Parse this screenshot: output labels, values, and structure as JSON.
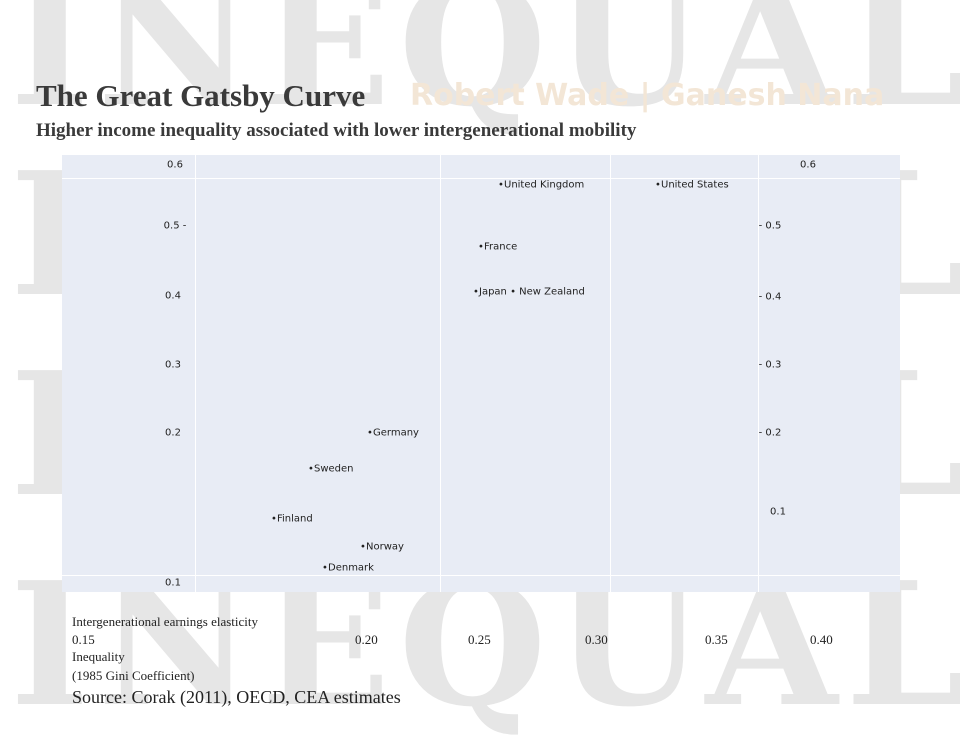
{
  "background": {
    "watermark": "INEQUALITY",
    "authors": "Robert Wade | Ganesh Nana"
  },
  "title": "The Great Gatsby Curve",
  "subtitle": "Higher income inequality associated with lower intergenerational mobility",
  "panel": {
    "left_labels": [
      "0.6",
      "0.5 -",
      "0.4",
      "0.3",
      "0.2",
      "0.1"
    ],
    "right_labels": [
      "0.6",
      "- 0.5",
      "- 0.4",
      "- 0.3",
      "- 0.2",
      "0.1"
    ],
    "points": [
      "United Kingdom",
      "United States",
      "France",
      "Japan • New Zealand",
      "Germany",
      "Sweden",
      "Finland",
      "Norway",
      "Denmark"
    ]
  },
  "y_axis_title": "Intergenerational earnings elasticity",
  "x_labels": [
    "0.15",
    "0.20",
    "0.25",
    "0.30",
    "0.35",
    "0.40"
  ],
  "x_axis_title": "Inequality",
  "x_axis_subtitle": "(1985 Gini Coefficient)",
  "source": "Source: Corak (2011), OECD, CEA estimates"
}
